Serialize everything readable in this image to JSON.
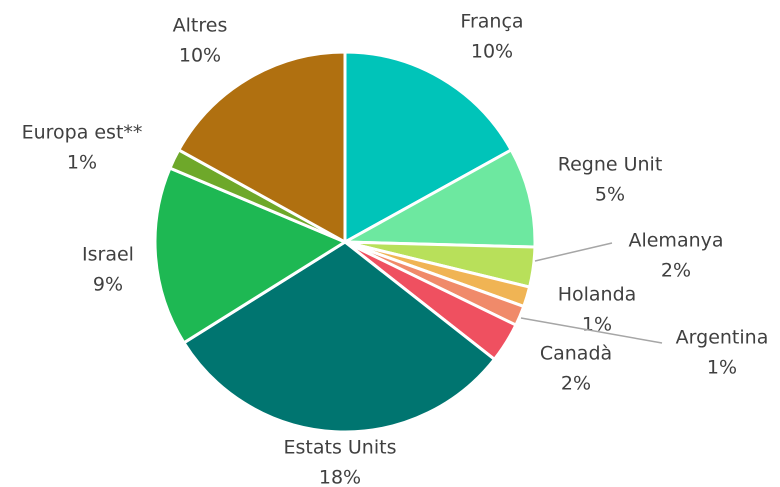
{
  "chart_data": {
    "type": "pie",
    "categories": [
      "França",
      "Regne Unit",
      "Alemanya",
      "Holanda",
      "Argentina",
      "Canadà",
      "Estats Units",
      "Israel",
      "Europa est**",
      "Altres"
    ],
    "values": [
      10,
      5,
      2,
      1,
      1,
      2,
      18,
      9,
      1,
      10
    ],
    "value_labels": [
      "10%",
      "5%",
      "2%",
      "1%",
      "1%",
      "2%",
      "18%",
      "9%",
      "1%",
      "10%"
    ],
    "colors": [
      "#00c4b9",
      "#6de8a0",
      "#b8e05a",
      "#f0b454",
      "#f08a6a",
      "#ef5060",
      "#007570",
      "#1eb853",
      "#6ea82a",
      "#b07010"
    ]
  }
}
